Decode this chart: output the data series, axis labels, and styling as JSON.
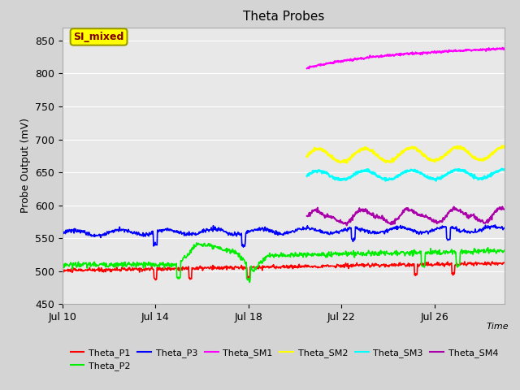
{
  "title": "Theta Probes",
  "xlabel": "Time",
  "ylabel": "Probe Output (mV)",
  "ylim": [
    450,
    870
  ],
  "yticks": [
    450,
    500,
    550,
    600,
    650,
    700,
    750,
    800,
    850
  ],
  "xtick_labels": [
    "Jul 10",
    "Jul 14",
    "Jul 18",
    "Jul 22",
    "Jul 26"
  ],
  "xtick_days": [
    0,
    4,
    8,
    12,
    16
  ],
  "fig_bg_color": "#d4d4d4",
  "plot_bg_color": "#e8e8e8",
  "grid_color": "#ffffff",
  "annotation_text": "SI_mixed",
  "annotation_color": "#800000",
  "annotation_bg": "#ffff00",
  "annotation_edge": "#999900",
  "total_days": 19,
  "sm_start_day": 10.5,
  "series": {
    "Theta_P1": {
      "color": "#ff0000"
    },
    "Theta_P2": {
      "color": "#00ee00"
    },
    "Theta_P3": {
      "color": "#0000ff"
    },
    "Theta_SM1": {
      "color": "#ff00ff"
    },
    "Theta_SM2": {
      "color": "#ffff00"
    },
    "Theta_SM3": {
      "color": "#00ffff"
    },
    "Theta_SM4": {
      "color": "#aa00aa"
    }
  }
}
